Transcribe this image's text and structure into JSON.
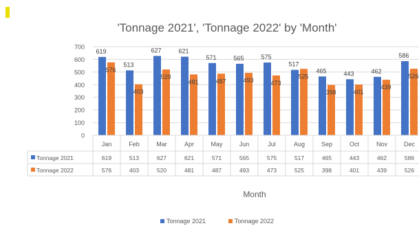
{
  "chart_data": {
    "type": "bar",
    "title": "'Tonnage 2021', 'Tonnage 2022' by 'Month'",
    "xlabel": "Month",
    "ylabel": "",
    "categories": [
      "Jan",
      "Feb",
      "Mar",
      "Apr",
      "May",
      "Jun",
      "Jul",
      "Aug",
      "Sep",
      "Oct",
      "Nov",
      "Dec"
    ],
    "series": [
      {
        "name": "Tonnage 2021",
        "color": "#4472c4",
        "values": [
          619,
          513,
          627,
          621,
          571,
          565,
          575,
          517,
          465,
          443,
          462,
          586
        ]
      },
      {
        "name": "Tonnage 2022",
        "color": "#ed7d31",
        "values": [
          576,
          403,
          520,
          481,
          487,
          493,
          473,
          525,
          398,
          401,
          439,
          526
        ]
      }
    ],
    "ylim": [
      0,
      700
    ],
    "yticks": [
      0,
      100,
      200,
      300,
      400,
      500,
      600,
      700
    ],
    "grid": true,
    "legend_position": "bottom",
    "data_table": true
  },
  "header_mark": "2"
}
